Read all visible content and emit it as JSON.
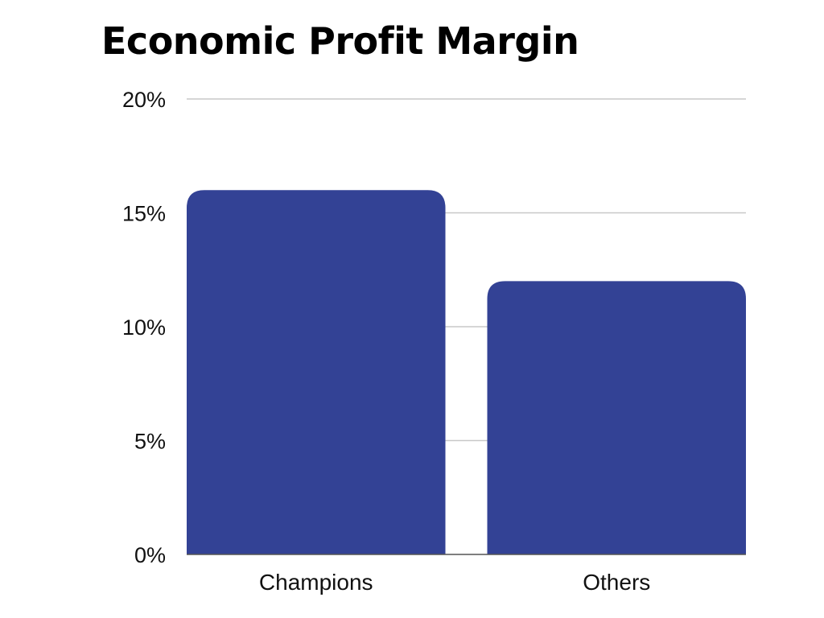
{
  "chart_data": {
    "type": "bar",
    "title": "Economic Profit Margin",
    "categories": [
      "Champions",
      "Others"
    ],
    "values": [
      16,
      12
    ],
    "unit": "%",
    "ylim": [
      0,
      20
    ],
    "yticks": [
      "0%",
      "5%",
      "10%",
      "15%",
      "20%"
    ],
    "ytick_values": [
      0,
      5,
      10,
      15,
      20
    ],
    "xlabel": "",
    "ylabel": "",
    "grid": true,
    "legend": "none",
    "colors": {
      "bar": "#334295",
      "grid": "#c8c8c8",
      "baseline": "#555555",
      "text": "#111111"
    }
  }
}
